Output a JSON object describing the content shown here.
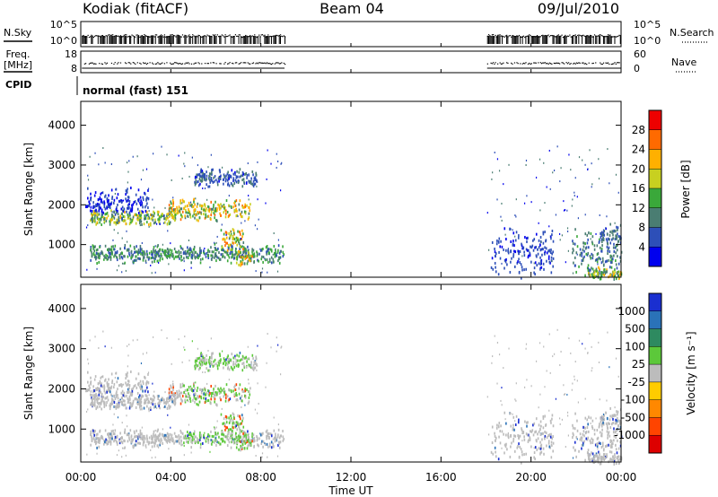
{
  "header": {
    "site": "Kodiak (fitACF)",
    "beam": "Beam 04",
    "date": "09/Jul/2010"
  },
  "strip_labels": {
    "nsky": "N.Sky",
    "nsearch": "N.Search",
    "freq_line1": "Freq.",
    "freq_line2": "[MHz]",
    "nave": "Nave",
    "cpid": "CPID",
    "cpid_value": "normal (fast) 151"
  },
  "strip_ticks": {
    "noise_left": [
      "10^5",
      "10^0"
    ],
    "noise_right": [
      "10^5",
      "10^0"
    ],
    "freq_left": [
      "18",
      "8"
    ],
    "nave_right": [
      "60",
      "0"
    ]
  },
  "chart_data": [
    {
      "type": "heatmap",
      "name": "power",
      "ylabel": "Slant Range [km]",
      "ylim": [
        180,
        4600
      ],
      "yticks": [
        "1000",
        "2000",
        "3000",
        "4000"
      ],
      "colorbar_label": "Power [dB]",
      "colorbar_ticks": [
        "4",
        "8",
        "12",
        "16",
        "20",
        "24",
        "28"
      ],
      "colorbar_colors": [
        "#0000ee",
        "#2d4fb8",
        "#4a7d72",
        "#3aa83a",
        "#c8d020",
        "#ffb000",
        "#ff6a00",
        "#ee0000"
      ]
    },
    {
      "type": "heatmap",
      "name": "velocity",
      "ylabel": "Slant Range [km]",
      "xlabel": "Time UT",
      "ylim": [
        180,
        4600
      ],
      "yticks": [
        "1000",
        "2000",
        "3000",
        "4000"
      ],
      "xticks": [
        "00:00",
        "04:00",
        "08:00",
        "12:00",
        "16:00",
        "20:00",
        "00:00"
      ],
      "colorbar_label": "Velocity [m s⁻¹]",
      "colorbar_ticks": [
        "1000",
        "500",
        "100",
        "25",
        "-25",
        "-100",
        "-500",
        "-1000"
      ],
      "colorbar_colors": [
        "#1a2fd0",
        "#2a72b8",
        "#2e8a60",
        "#5cc83a",
        "#bcbcbc",
        "#ffcc00",
        "#ff8800",
        "#ff4400",
        "#dd0000"
      ]
    }
  ]
}
